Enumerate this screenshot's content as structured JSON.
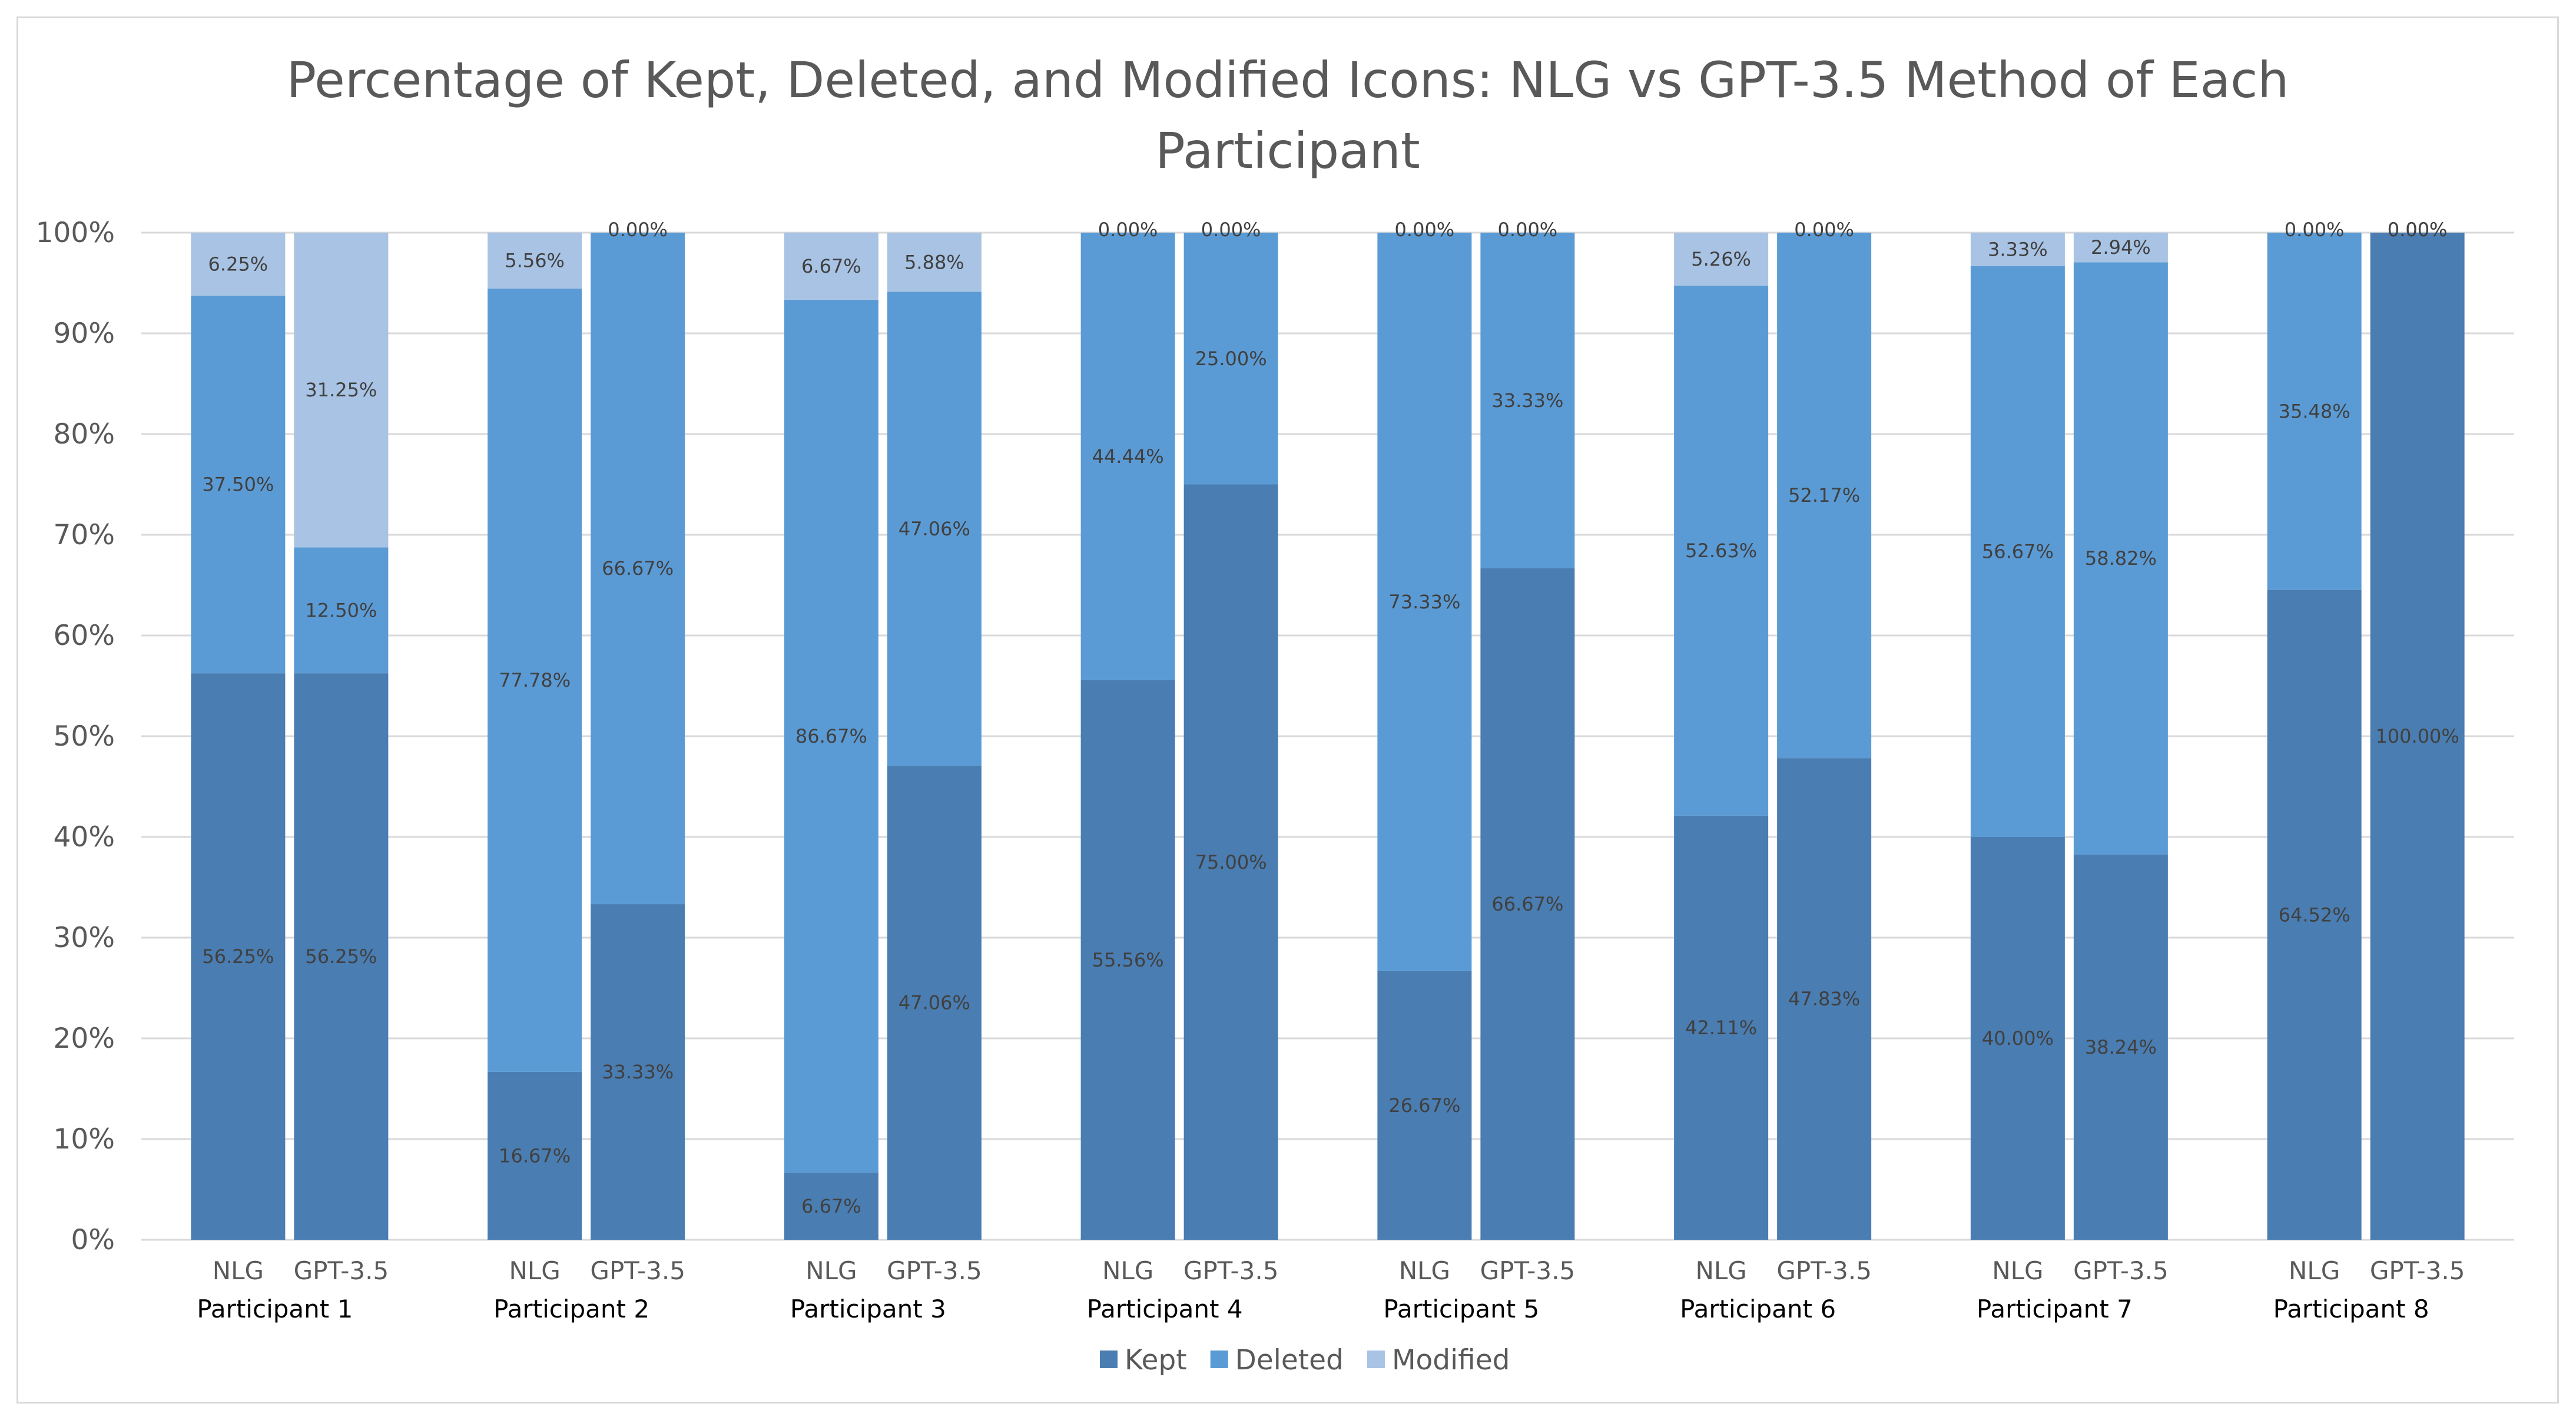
{
  "chart_data": {
    "type": "stacked-bar-100",
    "title_lines": [
      "Percentage of Kept, Deleted, and Modified Icons: NLG vs GPT-3.5 Method of Each",
      "Participant"
    ],
    "ylim": [
      0,
      100
    ],
    "y_ticks": [
      "0%",
      "10%",
      "20%",
      "30%",
      "40%",
      "50%",
      "60%",
      "70%",
      "80%",
      "90%",
      "100%"
    ],
    "grid": true,
    "legend_position": "bottom",
    "series": [
      {
        "name": "Kept",
        "color": "#4a7db1"
      },
      {
        "name": "Deleted",
        "color": "#5b9bd5"
      },
      {
        "name": "Modified",
        "color": "#a8c3e4"
      }
    ],
    "groups": [
      {
        "name": "Participant 1",
        "bars": [
          {
            "label": "NLG",
            "values": [
              56.25,
              37.5,
              6.25
            ],
            "labels": [
              "56.25%",
              "37.50%",
              "6.25%"
            ]
          },
          {
            "label": "GPT-3.5",
            "values": [
              56.25,
              12.5,
              31.25
            ],
            "labels": [
              "56.25%",
              "12.50%",
              "31.25%"
            ]
          }
        ]
      },
      {
        "name": "Participant 2",
        "bars": [
          {
            "label": "NLG",
            "values": [
              16.67,
              77.78,
              5.56
            ],
            "labels": [
              "16.67%",
              "77.78%",
              "5.56%"
            ]
          },
          {
            "label": "GPT-3.5",
            "values": [
              33.33,
              66.67,
              0.0
            ],
            "labels": [
              "33.33%",
              "66.67%",
              "0.00%"
            ]
          }
        ]
      },
      {
        "name": "Participant 3",
        "bars": [
          {
            "label": "NLG",
            "values": [
              6.67,
              86.67,
              6.67
            ],
            "labels": [
              "6.67%",
              "86.67%",
              "6.67%"
            ]
          },
          {
            "label": "GPT-3.5",
            "values": [
              47.06,
              47.06,
              5.88
            ],
            "labels": [
              "47.06%",
              "47.06%",
              "5.88%"
            ]
          }
        ]
      },
      {
        "name": "Participant 4",
        "bars": [
          {
            "label": "NLG",
            "values": [
              55.56,
              44.44,
              0.0
            ],
            "labels": [
              "55.56%",
              "44.44%",
              "0.00%"
            ]
          },
          {
            "label": "GPT-3.5",
            "values": [
              75.0,
              25.0,
              0.0
            ],
            "labels": [
              "75.00%",
              "25.00%",
              "0.00%"
            ]
          }
        ]
      },
      {
        "name": "Participant 5",
        "bars": [
          {
            "label": "NLG",
            "values": [
              26.67,
              73.33,
              0.0
            ],
            "labels": [
              "26.67%",
              "73.33%",
              "0.00%"
            ]
          },
          {
            "label": "GPT-3.5",
            "values": [
              66.67,
              33.33,
              0.0
            ],
            "labels": [
              "66.67%",
              "33.33%",
              "0.00%"
            ]
          }
        ]
      },
      {
        "name": "Participant 6",
        "bars": [
          {
            "label": "NLG",
            "values": [
              42.11,
              52.63,
              5.26
            ],
            "labels": [
              "42.11%",
              "52.63%",
              "5.26%"
            ]
          },
          {
            "label": "GPT-3.5",
            "values": [
              47.83,
              52.17,
              0.0
            ],
            "labels": [
              "47.83%",
              "52.17%",
              "0.00%"
            ]
          }
        ]
      },
      {
        "name": "Participant 7",
        "bars": [
          {
            "label": "NLG",
            "values": [
              40.0,
              56.67,
              3.33
            ],
            "labels": [
              "40.00%",
              "56.67%",
              "3.33%"
            ]
          },
          {
            "label": "GPT-3.5",
            "values": [
              38.24,
              58.82,
              2.94
            ],
            "labels": [
              "38.24%",
              "58.82%",
              "2.94%"
            ]
          }
        ]
      },
      {
        "name": "Participant 8",
        "bars": [
          {
            "label": "NLG",
            "values": [
              64.52,
              35.48,
              0.0
            ],
            "labels": [
              "64.52%",
              "35.48%",
              "0.00%"
            ]
          },
          {
            "label": "GPT-3.5",
            "values": [
              100.0,
              0.0,
              0.0
            ],
            "labels": [
              "100.00%",
              "0.00%",
              "0.00%"
            ]
          }
        ]
      }
    ]
  }
}
